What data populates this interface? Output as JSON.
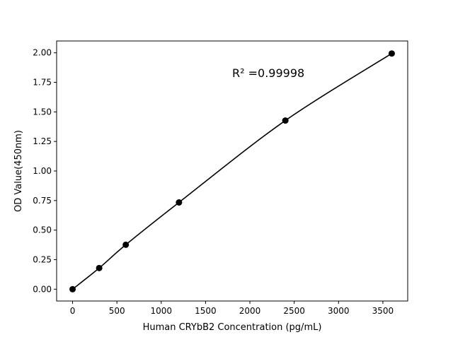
{
  "chart_data": {
    "type": "scatter",
    "title": "",
    "xlabel": "Human CRYbB2 Concentration (pg/mL)",
    "ylabel": "OD Value(450nm)",
    "xlim": [
      -180,
      3780
    ],
    "ylim": [
      -0.1,
      2.1
    ],
    "xticks": [
      0,
      500,
      1000,
      1500,
      2000,
      2500,
      3000,
      3500
    ],
    "yticks": [
      "0.00",
      "0.25",
      "0.50",
      "0.75",
      "1.00",
      "1.25",
      "1.50",
      "1.75",
      "2.00"
    ],
    "grid": false,
    "annotation": "R² =0.99998",
    "series": [
      {
        "x": [
          0,
          300,
          600,
          1200,
          2400,
          3600
        ],
        "y": [
          0.0,
          0.179,
          0.376,
          0.734,
          1.427,
          1.994
        ],
        "color": "#000000",
        "marker": "circle",
        "fit_line": true
      }
    ]
  }
}
